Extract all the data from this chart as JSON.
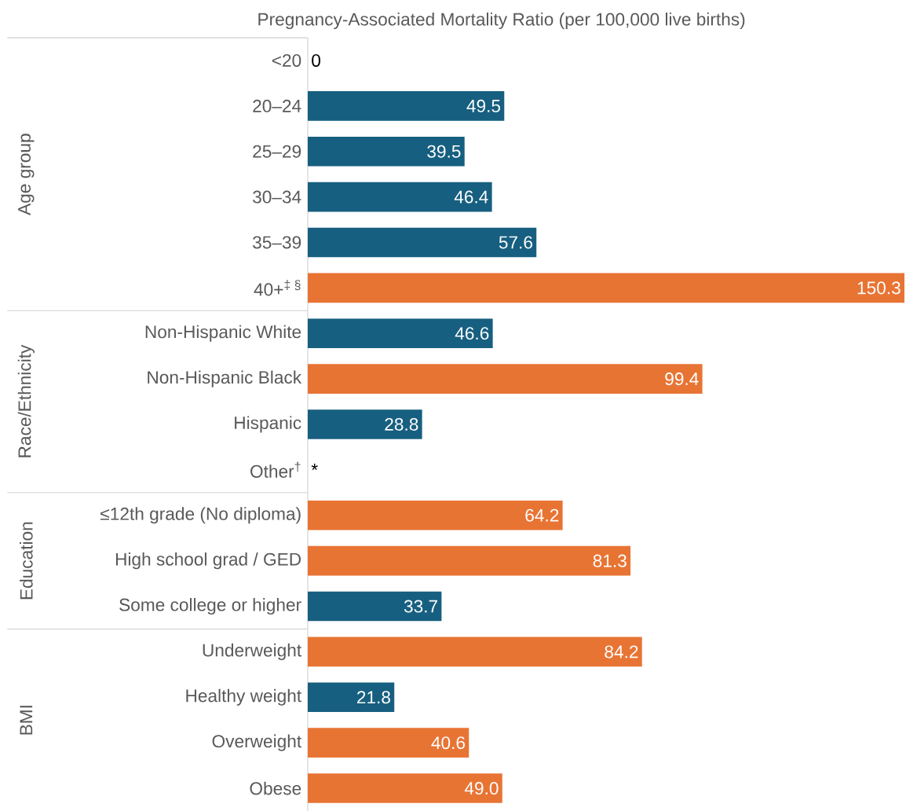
{
  "chart_data": {
    "type": "bar",
    "orientation": "horizontal",
    "title": "Pregnancy-Associated Mortality Ratio (per 100,000 live births)",
    "categories": [
      "<20",
      "20–24",
      "25–29",
      "30–34",
      "35–39",
      "40+$^{‡ §}$",
      "Non-Hispanic White",
      "Non-Hispanic Black",
      "Hispanic",
      "Other$^{†}$",
      "≤12th grade (No diploma)",
      "High school grad / GED",
      "Some college or higher",
      "Underweight",
      "Healthy weight",
      "Overweight",
      "Obese"
    ],
    "values": [
      0,
      49.5,
      39.5,
      46.4,
      57.6,
      150.3,
      46.6,
      99.4,
      28.8,
      null,
      64.2,
      81.3,
      33.7,
      84.2,
      21.8,
      40.6,
      49.0
    ],
    "value_labels": [
      "0",
      "49.5",
      "39.5",
      "46.4",
      "57.6",
      "150.3",
      "46.6",
      "99.4",
      "28.8",
      "*",
      "64.2",
      "81.3",
      "33.7",
      "84.2",
      "21.8",
      "40.6",
      "49.0"
    ],
    "colors": [
      "#175f80",
      "#175f80",
      "#175f80",
      "#175f80",
      "#175f80",
      "#e87434",
      "#175f80",
      "#e87434",
      "#175f80",
      "#175f80",
      "#e87434",
      "#e87434",
      "#175f80",
      "#e87434",
      "#175f80",
      "#e87434",
      "#e87434"
    ],
    "annotations": [
      "Age group",
      "Race/Ethnicity",
      "Education",
      "BMI"
    ]
  }
}
